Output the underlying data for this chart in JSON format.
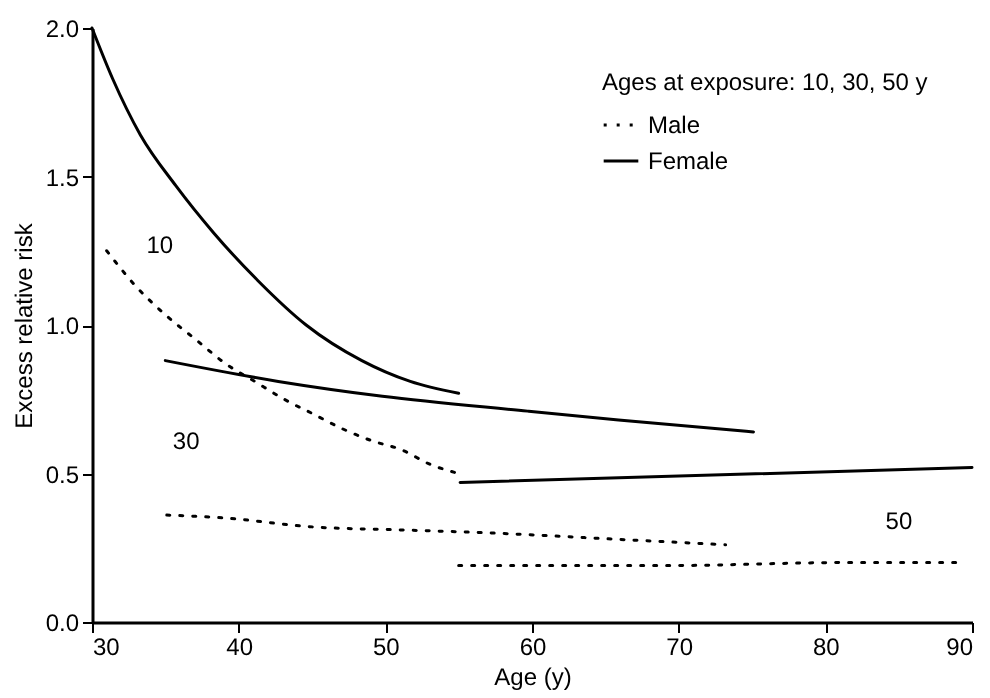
{
  "chart_data": {
    "type": "line",
    "xlabel": "Age (y)",
    "ylabel": "Excess relative risk",
    "legend_title": "Ages at exposure: 10, 30, 50 y",
    "series": [
      {
        "name": "Male",
        "color": "#000000",
        "line_style": "dotted",
        "x": [
          31.0,
          33.0,
          35.1,
          37.1,
          39.1,
          41.1,
          43.1,
          45.1,
          47.1,
          49.1,
          51.1,
          53.1,
          55.0
        ],
        "values": [
          1.25,
          1.13,
          1.03,
          0.95,
          0.87,
          0.81,
          0.75,
          0.7,
          0.65,
          0.61,
          0.58,
          0.53,
          0.5
        ]
      },
      {
        "name": "Female",
        "color": "#000000",
        "line_style": "solid",
        "x": [
          30.0,
          31.4,
          33.3,
          35.7,
          38.3,
          41.3,
          44.6,
          48.4,
          51.7,
          55.0
        ],
        "values": [
          2.0,
          1.83,
          1.64,
          1.47,
          1.31,
          1.15,
          1.0,
          0.88,
          0.81,
          0.77
        ]
      },
      {
        "color": "#000000",
        "line_style": "dotted",
        "x": [
          35.1,
          39.1,
          45.1,
          51.1,
          57.1,
          65.2,
          73.2
        ],
        "values": [
          0.36,
          0.35,
          0.32,
          0.31,
          0.3,
          0.28,
          0.26
        ]
      },
      {
        "color": "#000000",
        "line_style": "solid",
        "x": [
          35.0,
          42.7,
          49.8,
          59.7,
          65.9,
          75.1
        ],
        "values": [
          0.88,
          0.81,
          0.76,
          0.71,
          0.68,
          0.64
        ]
      },
      {
        "color": "#000000",
        "line_style": "dotted",
        "x": [
          55.0,
          69.2,
          81.2,
          89.2
        ],
        "values": [
          0.19,
          0.19,
          0.2,
          0.2
        ]
      },
      {
        "color": "#000000",
        "line_style": "solid",
        "x": [
          55.1,
          90.0
        ],
        "values": [
          0.47,
          0.52
        ]
      }
    ],
    "annotations": [
      "10",
      "30",
      "50"
    ],
    "xlim": [
      30,
      90
    ],
    "xticks": [
      30,
      40,
      50,
      60,
      70,
      80,
      90
    ],
    "ylim": [
      0,
      2.0
    ],
    "yticks": [
      {
        "value": 0,
        "label": "0.0"
      },
      0.5,
      {
        "value": 1,
        "label": "1.0"
      },
      1.5,
      {
        "value": 2,
        "label": "2.0"
      }
    ],
    "grid": false,
    "legend": "top right",
    "marker": "none"
  }
}
